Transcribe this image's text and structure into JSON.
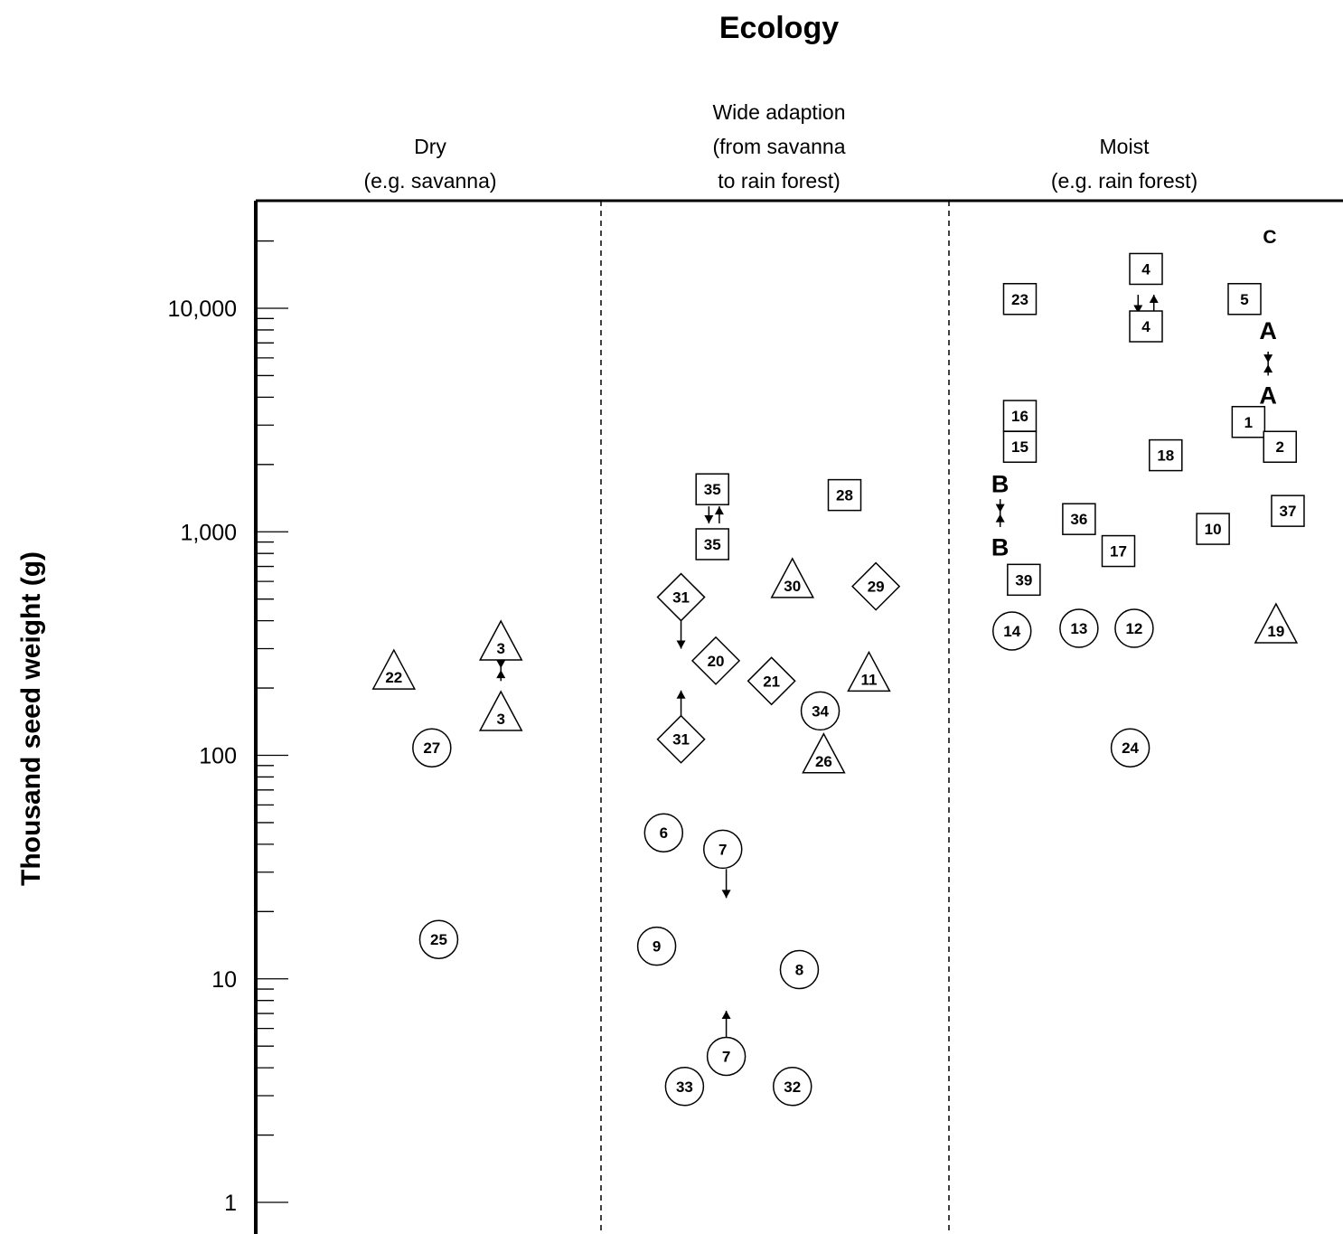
{
  "colors": {
    "ink": "#000000",
    "background": "#ffffff"
  },
  "chart_data": {
    "type": "scatter",
    "title": "Ecology",
    "ylabel": "Thousand seed weight (g)",
    "xlabel": "",
    "yscale": "log",
    "ylim": [
      1,
      30000
    ],
    "yticks": [
      {
        "value": 1,
        "label": "1"
      },
      {
        "value": 10,
        "label": "10"
      },
      {
        "value": 100,
        "label": "100"
      },
      {
        "value": 1000,
        "label": "1,000"
      },
      {
        "value": 10000,
        "label": "10,000"
      }
    ],
    "categories": [
      {
        "id": "dry",
        "lines": [
          "Dry",
          "(e.g. savanna)"
        ]
      },
      {
        "id": "wide",
        "lines": [
          "Wide adaption",
          "(from savanna",
          "to rain forest)"
        ]
      },
      {
        "id": "moist",
        "lines": [
          "Moist",
          "(e.g. rain forest)"
        ]
      }
    ],
    "corner_label": "C",
    "grid": false,
    "legend": "none",
    "points": [
      {
        "label": "22",
        "shape": "triangle",
        "category": "dry",
        "pos": 0.4,
        "y": 230
      },
      {
        "label": "3",
        "shape": "triangle",
        "category": "dry",
        "pos": 0.71,
        "y": 310
      },
      {
        "label": "3",
        "shape": "triangle",
        "category": "dry",
        "pos": 0.71,
        "y": 150
      },
      {
        "label": "27",
        "shape": "circle",
        "category": "dry",
        "pos": 0.51,
        "y": 108
      },
      {
        "label": "25",
        "shape": "circle",
        "category": "dry",
        "pos": 0.53,
        "y": 15
      },
      {
        "label": "35",
        "shape": "square",
        "category": "wide",
        "pos": 0.32,
        "y": 1550
      },
      {
        "label": "35",
        "shape": "square",
        "category": "wide",
        "pos": 0.32,
        "y": 880
      },
      {
        "label": "28",
        "shape": "square",
        "category": "wide",
        "pos": 0.7,
        "y": 1460
      },
      {
        "label": "30",
        "shape": "triangle",
        "category": "wide",
        "pos": 0.55,
        "y": 590
      },
      {
        "label": "29",
        "shape": "diamond",
        "category": "wide",
        "pos": 0.79,
        "y": 570
      },
      {
        "label": "31",
        "shape": "diamond",
        "category": "wide",
        "pos": 0.23,
        "y": 510
      },
      {
        "label": "20",
        "shape": "diamond",
        "category": "wide",
        "pos": 0.33,
        "y": 265
      },
      {
        "label": "21",
        "shape": "diamond",
        "category": "wide",
        "pos": 0.49,
        "y": 215
      },
      {
        "label": "11",
        "shape": "triangle",
        "category": "wide",
        "pos": 0.77,
        "y": 225
      },
      {
        "label": "34",
        "shape": "circle",
        "category": "wide",
        "pos": 0.63,
        "y": 158
      },
      {
        "label": "31",
        "shape": "diamond",
        "category": "wide",
        "pos": 0.23,
        "y": 118
      },
      {
        "label": "26",
        "shape": "triangle",
        "category": "wide",
        "pos": 0.64,
        "y": 97
      },
      {
        "label": "6",
        "shape": "circle",
        "category": "wide",
        "pos": 0.18,
        "y": 45
      },
      {
        "label": "7",
        "shape": "circle",
        "category": "wide",
        "pos": 0.35,
        "y": 38
      },
      {
        "label": "9",
        "shape": "circle",
        "category": "wide",
        "pos": 0.16,
        "y": 14
      },
      {
        "label": "8",
        "shape": "circle",
        "category": "wide",
        "pos": 0.57,
        "y": 11
      },
      {
        "label": "7",
        "shape": "circle",
        "category": "wide",
        "pos": 0.36,
        "y": 4.5
      },
      {
        "label": "33",
        "shape": "circle",
        "category": "wide",
        "pos": 0.24,
        "y": 3.3
      },
      {
        "label": "32",
        "shape": "circle",
        "category": "wide",
        "pos": 0.55,
        "y": 3.3
      },
      {
        "label": "4",
        "shape": "square",
        "category": "moist",
        "pos": 0.5,
        "y": 15000
      },
      {
        "label": "23",
        "shape": "square",
        "category": "moist",
        "pos": 0.18,
        "y": 11000
      },
      {
        "label": "5",
        "shape": "square",
        "category": "moist",
        "pos": 0.75,
        "y": 11000
      },
      {
        "label": "4",
        "shape": "square",
        "category": "moist",
        "pos": 0.5,
        "y": 8300
      },
      {
        "label": "A",
        "shape": "letter",
        "category": "moist",
        "pos": 0.81,
        "y": 8000
      },
      {
        "label": "A",
        "shape": "letter",
        "category": "moist",
        "pos": 0.81,
        "y": 4100
      },
      {
        "label": "16",
        "shape": "square",
        "category": "moist",
        "pos": 0.18,
        "y": 3300
      },
      {
        "label": "1",
        "shape": "square",
        "category": "moist",
        "pos": 0.76,
        "y": 3100
      },
      {
        "label": "15",
        "shape": "square",
        "category": "moist",
        "pos": 0.18,
        "y": 2400
      },
      {
        "label": "2",
        "shape": "square",
        "category": "moist",
        "pos": 0.84,
        "y": 2400
      },
      {
        "label": "18",
        "shape": "square",
        "category": "moist",
        "pos": 0.55,
        "y": 2200
      },
      {
        "label": "B",
        "shape": "letter",
        "category": "moist",
        "pos": 0.13,
        "y": 1650
      },
      {
        "label": "B",
        "shape": "letter",
        "category": "moist",
        "pos": 0.13,
        "y": 860
      },
      {
        "label": "36",
        "shape": "square",
        "category": "moist",
        "pos": 0.33,
        "y": 1140
      },
      {
        "label": "37",
        "shape": "square",
        "category": "moist",
        "pos": 0.86,
        "y": 1240
      },
      {
        "label": "10",
        "shape": "square",
        "category": "moist",
        "pos": 0.67,
        "y": 1030
      },
      {
        "label": "17",
        "shape": "square",
        "category": "moist",
        "pos": 0.43,
        "y": 820
      },
      {
        "label": "39",
        "shape": "square",
        "category": "moist",
        "pos": 0.19,
        "y": 610
      },
      {
        "label": "14",
        "shape": "circle",
        "category": "moist",
        "pos": 0.16,
        "y": 360
      },
      {
        "label": "13",
        "shape": "circle",
        "category": "moist",
        "pos": 0.33,
        "y": 370
      },
      {
        "label": "12",
        "shape": "circle",
        "category": "moist",
        "pos": 0.47,
        "y": 370
      },
      {
        "label": "19",
        "shape": "triangle",
        "category": "moist",
        "pos": 0.83,
        "y": 370
      },
      {
        "label": "24",
        "shape": "circle",
        "category": "moist",
        "pos": 0.46,
        "y": 108
      }
    ],
    "arrows": [
      {
        "category": "dry",
        "pos": 0.71,
        "from": 275,
        "to": 215,
        "style": "double"
      },
      {
        "category": "wide",
        "pos": 0.31,
        "from": 1300,
        "to": 1090,
        "style": "down"
      },
      {
        "category": "wide",
        "pos": 0.34,
        "from": 1090,
        "to": 1300,
        "style": "up"
      },
      {
        "category": "wide",
        "pos": 0.23,
        "from": 430,
        "to": 300,
        "style": "down"
      },
      {
        "category": "wide",
        "pos": 0.23,
        "from": 145,
        "to": 195,
        "style": "up"
      },
      {
        "category": "wide",
        "pos": 0.36,
        "from": 31,
        "to": 23,
        "style": "down"
      },
      {
        "category": "wide",
        "pos": 0.36,
        "from": 5.5,
        "to": 7.2,
        "style": "up"
      },
      {
        "category": "moist",
        "pos": 0.48,
        "from": 11500,
        "to": 9500,
        "style": "down"
      },
      {
        "category": "moist",
        "pos": 0.52,
        "from": 9500,
        "to": 11500,
        "style": "up"
      },
      {
        "category": "moist",
        "pos": 0.81,
        "from": 6400,
        "to": 5000,
        "style": "double"
      },
      {
        "category": "moist",
        "pos": 0.13,
        "from": 1400,
        "to": 1050,
        "style": "double"
      }
    ]
  }
}
